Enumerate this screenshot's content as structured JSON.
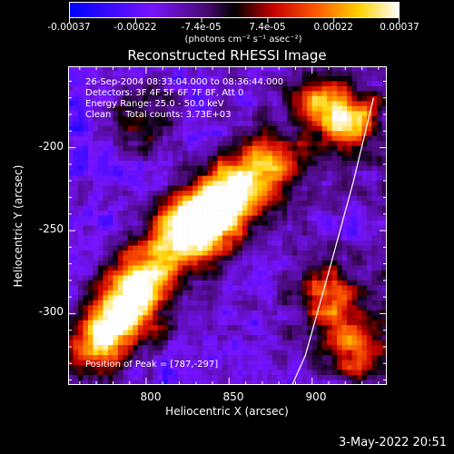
{
  "colorbar": {
    "labels": [
      "-0.00037",
      "-0.00022",
      "-7.4e-05",
      "7.4e-05",
      "0.00022",
      "0.00037"
    ],
    "units": "(photons cm⁻² s⁻¹ asec⁻²)",
    "min": -0.00037,
    "max": 0.00037
  },
  "title": "Reconstructed RHESSI Image",
  "info": {
    "line1": "26-Sep-2004 08:33:04.000 to 08:36:44.000",
    "line2": "Detectors: 3F 4F 5F 6F 7F 8F, Att 0",
    "line3": "Energy Range: 25.0 - 50.0 keV",
    "line4": "Clean     Total counts: 3.73E+03"
  },
  "peak": "Position of Peak = [787,-297]",
  "footer": {
    "date": "3-May-2022 20:51"
  },
  "chart_data": {
    "type": "heatmap",
    "title": "Reconstructed RHESSI Image",
    "xlabel": "Heliocentric X (arcsec)",
    "ylabel": "Heliocentric Y (arcsec)",
    "xlim": [
      753,
      945
    ],
    "ylim": [
      -343,
      -151
    ],
    "x_ticks": [
      "800",
      "850",
      "900"
    ],
    "x_tick_values": [
      800,
      850,
      900
    ],
    "y_ticks": [
      "-200",
      "-250",
      "-300"
    ],
    "y_tick_values": [
      -200,
      -250,
      -300
    ],
    "colorbar_range": [
      -0.00037,
      0.00037
    ],
    "bright_regions": [
      {
        "x": 840,
        "y": -240,
        "level": 0.9
      },
      {
        "x": 823,
        "y": -251,
        "level": 0.95
      },
      {
        "x": 855,
        "y": -225,
        "level": 0.75
      },
      {
        "x": 875,
        "y": -210,
        "level": 0.6
      },
      {
        "x": 787,
        "y": -297,
        "level": 1.0
      },
      {
        "x": 770,
        "y": -320,
        "level": 0.75
      },
      {
        "x": 800,
        "y": -275,
        "level": 0.6
      },
      {
        "x": 905,
        "y": -175,
        "level": 0.6
      },
      {
        "x": 925,
        "y": -185,
        "level": 0.55
      },
      {
        "x": 910,
        "y": -290,
        "level": 0.6
      },
      {
        "x": 925,
        "y": -320,
        "level": 0.5
      },
      {
        "x": 795,
        "y": -185,
        "level": 0.4
      }
    ],
    "limb_curve": [
      [
        937,
        -170
      ],
      [
        925,
        -220
      ],
      [
        910,
        -275
      ],
      [
        896,
        -325
      ],
      [
        888,
        -343
      ]
    ],
    "peak_position": [
      787,
      -297
    ],
    "colormap": "IDL color table 5 (std gamma-II): blue-purple-black-red-orange-yellow-white",
    "grid": false
  }
}
